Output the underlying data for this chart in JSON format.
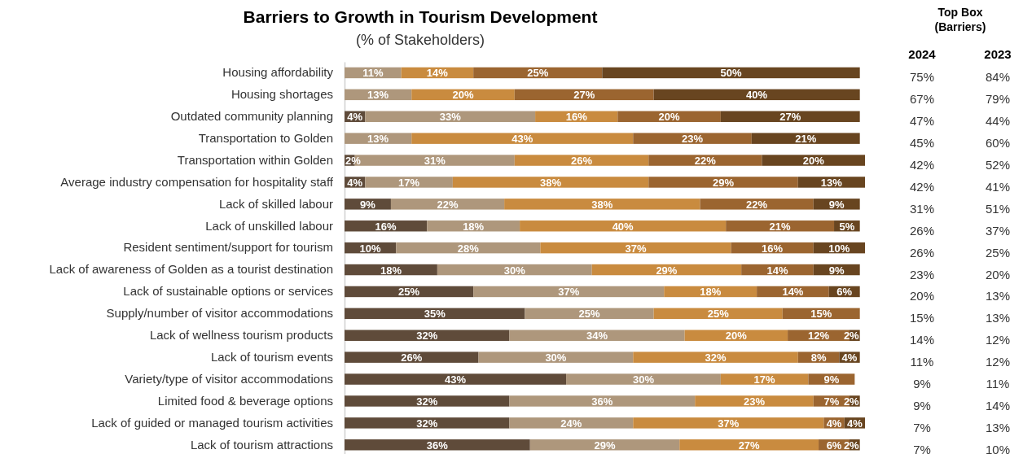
{
  "chart_data": [
    {
      "type": "bar",
      "orientation": "horizontal",
      "stacked": true,
      "title": "Barriers to Growth in Tourism Development",
      "subtitle": "(% of Stakeholders)",
      "categories": [
        "Housing affordability",
        "Housing shortages",
        "Outdated community planning",
        "Transportation to Golden",
        "Transportation within Golden",
        "Average industry compensation for hospitality staff",
        "Lack of skilled labour",
        "Lack of unskilled labour",
        "Resident sentiment/support for tourism",
        "Lack of awareness of Golden as a tourist destination",
        "Lack of sustainable options or services",
        "Supply/number of visitor accommodations",
        "Lack of wellness tourism products",
        "Lack of tourism events",
        "Variety/type of visitor accommodations",
        "Limited food & beverage options",
        "Lack of guided or managed tourism activities",
        "Lack of tourism attractions"
      ],
      "xlim": [
        0,
        101
      ],
      "tick_labels": "y",
      "grid": false,
      "series": [
        {
          "color": "#5f4b3a",
          "values": [
            0,
            0,
            4,
            0,
            2,
            4,
            9,
            16,
            10,
            18,
            25,
            35,
            32,
            26,
            43,
            32,
            32,
            36
          ],
          "value_labels": [
            null,
            null,
            "4%",
            null,
            "2%",
            "4%",
            "9%",
            "16%",
            "10%",
            "18%",
            "25%",
            "35%",
            "32%",
            "26%",
            "43%",
            "32%",
            "32%",
            "36%"
          ]
        },
        {
          "color": "#ae977c",
          "values": [
            11,
            13,
            33,
            13,
            31,
            17,
            22,
            18,
            28,
            30,
            37,
            25,
            34,
            30,
            30,
            36,
            24,
            29
          ],
          "value_labels": [
            "11%",
            "13%",
            "33%",
            "13%",
            "31%",
            "17%",
            "22%",
            "18%",
            "28%",
            "30%",
            "37%",
            "25%",
            "34%",
            "30%",
            "30%",
            "36%",
            "24%",
            "29%"
          ]
        },
        {
          "color": "#c98b3f",
          "values": [
            14,
            20,
            16,
            43,
            26,
            38,
            38,
            40,
            37,
            29,
            18,
            25,
            20,
            32,
            17,
            23,
            37,
            27
          ],
          "value_labels": [
            "14%",
            "20%",
            "16%",
            "43%",
            "26%",
            "38%",
            "38%",
            "40%",
            "37%",
            "29%",
            "18%",
            "25%",
            "20%",
            "32%",
            "17%",
            "23%",
            "37%",
            "27%"
          ]
        },
        {
          "color": "#9b6530",
          "values": [
            25,
            27,
            20,
            23,
            22,
            29,
            22,
            21,
            16,
            14,
            14,
            15,
            12,
            8,
            9,
            7,
            4,
            6
          ],
          "value_labels": [
            "25%",
            "27%",
            "20%",
            "23%",
            "22%",
            "29%",
            "22%",
            "21%",
            "16%",
            "14%",
            "14%",
            "15%",
            "12%",
            "8%",
            "9%",
            "7%",
            "4%",
            "6%"
          ]
        },
        {
          "color": "#684520",
          "values": [
            50,
            40,
            27,
            21,
            20,
            13,
            9,
            5,
            10,
            9,
            6,
            0,
            2,
            4,
            0,
            2,
            4,
            2
          ],
          "value_labels": [
            "50%",
            "40%",
            "27%",
            "21%",
            "20%",
            "13%",
            "9%",
            "5%",
            "10%",
            "9%",
            "6%",
            null,
            "2%",
            "4%",
            null,
            "2%",
            "4%",
            "2%"
          ]
        }
      ]
    },
    {
      "type": "other",
      "title": "Top Box (Barriers)",
      "annotations": [
        "2024",
        "2023",
        "75%",
        "84%",
        "67%",
        "79%",
        "47%",
        "44%",
        "45%",
        "60%",
        "42%",
        "52%",
        "42%",
        "41%",
        "31%",
        "51%",
        "26%",
        "37%",
        "26%",
        "25%",
        "23%",
        "20%",
        "20%",
        "13%",
        "15%",
        "13%",
        "14%",
        "12%",
        "11%",
        "12%",
        "9%",
        "11%",
        "9%",
        "14%",
        "7%",
        "13%",
        "7%",
        "10%"
      ]
    }
  ]
}
